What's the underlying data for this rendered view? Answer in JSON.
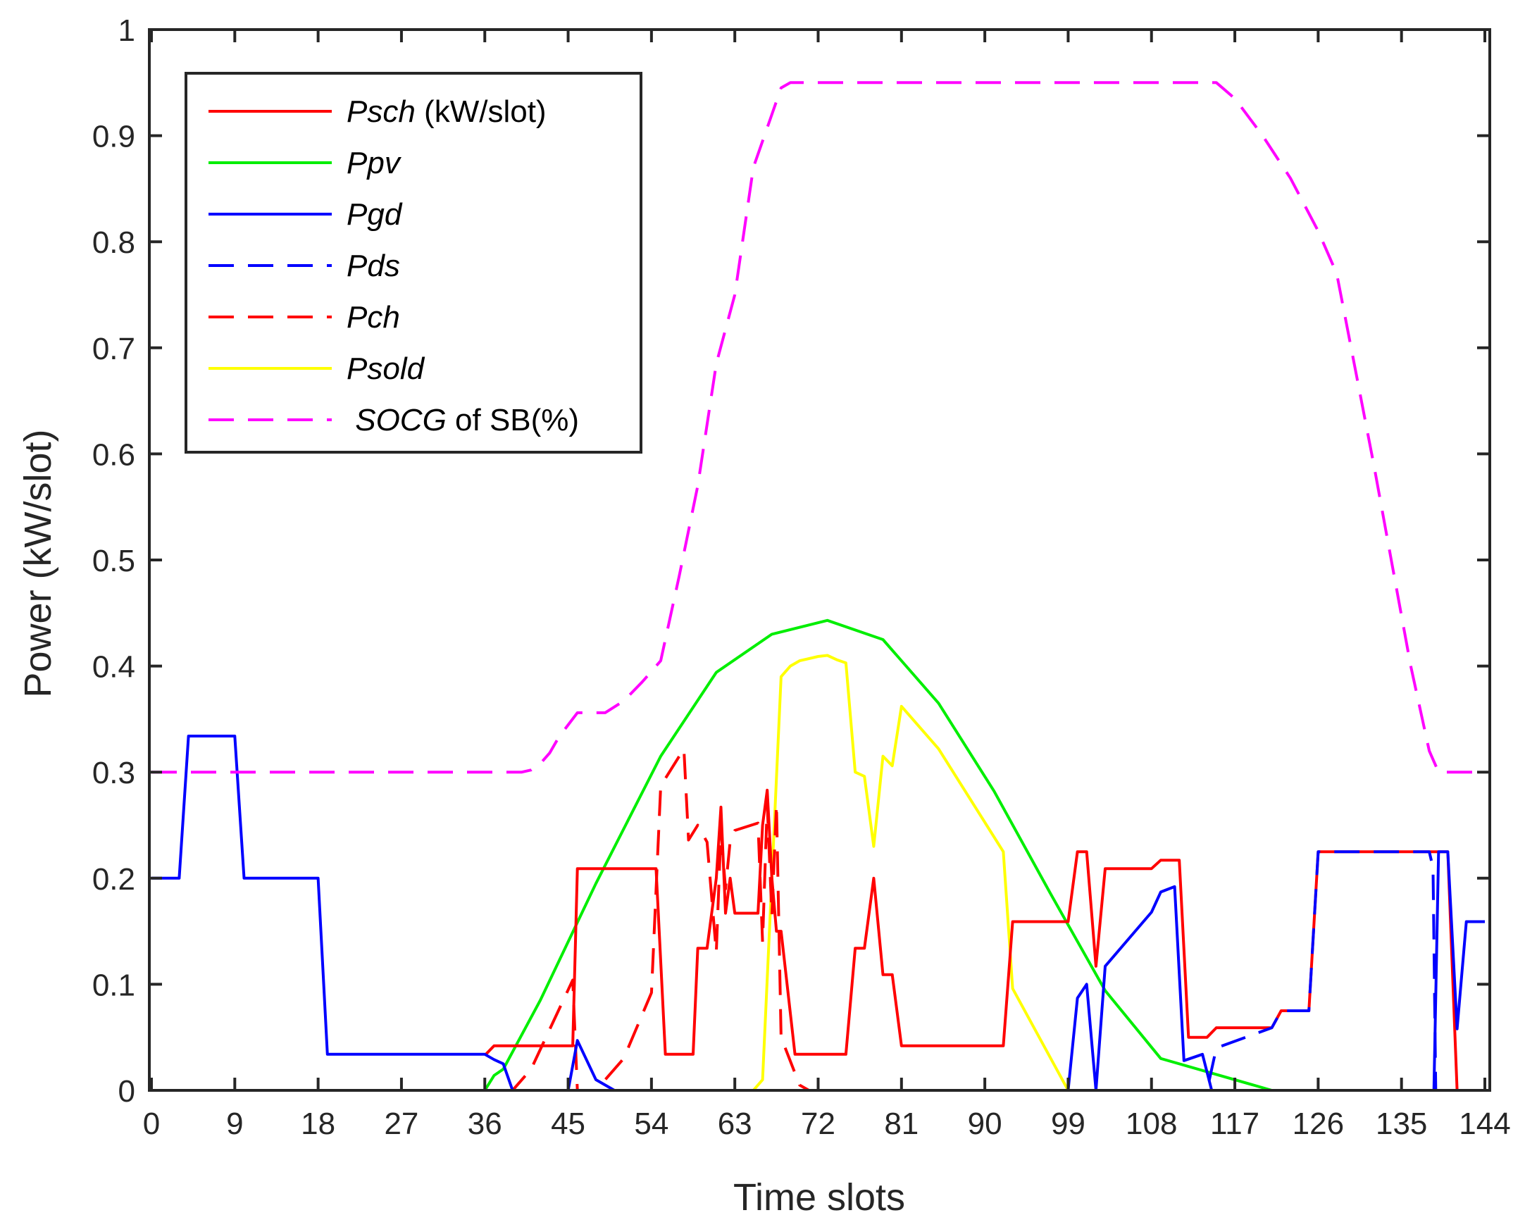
{
  "chart_data": {
    "type": "line",
    "title": "",
    "xlabel": "Time slots",
    "ylabel": "Power (kW/slot)",
    "xlim": [
      0,
      145
    ],
    "ylim": [
      0,
      1
    ],
    "grid": false,
    "legend_position": "top-left",
    "x_ticks": [
      0,
      9,
      18,
      27,
      36,
      45,
      54,
      63,
      72,
      81,
      90,
      99,
      108,
      117,
      126,
      135,
      144
    ],
    "y_ticks": [
      0,
      0.1,
      0.2,
      0.3,
      0.4,
      0.5,
      0.6,
      0.7,
      0.8,
      0.9,
      1
    ],
    "y_tick_labels": [
      "0",
      "0.1",
      "0.2",
      "0.3",
      "0.4",
      "0.5",
      "0.6",
      "0.7",
      "0.8",
      "0.9",
      "1"
    ],
    "series": [
      {
        "name": "Psch",
        "name_suffix": " (kW/slot)",
        "color": "#ff0000",
        "dash": "solid",
        "x": [
          36,
          37,
          45.5,
          46,
          54.5,
          55.5,
          58.5,
          59,
          60,
          61,
          61.5,
          62,
          62.5,
          63,
          65.5,
          66,
          66.5,
          67,
          67.5,
          68,
          69.5,
          75,
          76,
          77,
          78,
          79,
          80,
          81,
          92,
          93,
          99,
          100,
          101,
          102,
          103,
          108,
          109,
          111,
          112,
          114,
          115,
          121,
          122,
          125,
          126,
          140,
          141,
          144
        ],
        "y": [
          0.033,
          0.042,
          0.042,
          0.209,
          0.209,
          0.034,
          0.034,
          0.134,
          0.134,
          0.2,
          0.267,
          0.167,
          0.2,
          0.167,
          0.167,
          0.25,
          0.283,
          0.2,
          0.15,
          0.15,
          0.034,
          0.034,
          0.134,
          0.134,
          0.2,
          0.109,
          0.109,
          0.042,
          0.042,
          0.159,
          0.159,
          0.225,
          0.225,
          0.117,
          0.209,
          0.209,
          0.217,
          0.217,
          0.05,
          0.05,
          0.059,
          0.059,
          0.075,
          0.075,
          0.225,
          0.225,
          0.0,
          0.0
        ]
      },
      {
        "name": "Ppv",
        "name_suffix": "",
        "color": "#00ee00",
        "dash": "solid",
        "x": [
          0,
          36,
          37,
          38,
          42,
          48,
          55,
          61,
          67,
          73,
          79,
          85,
          91,
          97,
          103,
          109,
          115,
          121,
          144
        ],
        "y": [
          0.0,
          0.0,
          0.014,
          0.02,
          0.085,
          0.195,
          0.315,
          0.394,
          0.43,
          0.443,
          0.425,
          0.365,
          0.282,
          0.187,
          0.094,
          0.03,
          0.015,
          0.0,
          0.0
        ]
      },
      {
        "name": "Pgd",
        "name_suffix": "",
        "color": "#0000ff",
        "dash": "solid",
        "x": [
          0,
          3,
          4,
          9,
          10,
          18,
          19,
          36,
          37,
          38,
          39,
          40,
          45,
          46,
          48,
          50,
          99,
          100,
          101,
          102,
          103,
          108,
          109,
          110.5,
          111.5,
          113.5,
          114.5,
          138,
          138.5,
          139,
          140,
          141,
          142,
          143,
          144
        ],
        "y": [
          0.2,
          0.2,
          0.334,
          0.334,
          0.2,
          0.2,
          0.034,
          0.034,
          0.029,
          0.025,
          0.0,
          0.0,
          0.0,
          0.047,
          0.01,
          0.0,
          0.0,
          0.087,
          0.1,
          0.0,
          0.117,
          0.168,
          0.187,
          0.192,
          0.028,
          0.034,
          0.0,
          0.0,
          0.0,
          0.225,
          0.225,
          0.058,
          0.159,
          0.159,
          0.159
        ]
      },
      {
        "name": "Pds",
        "name_suffix": "",
        "color": "#0000ff",
        "dash": "dashed",
        "x": [
          0,
          114,
          115,
          121,
          122,
          125,
          126,
          138,
          138.4,
          138.7,
          139,
          144
        ],
        "y": [
          0.0,
          0.0,
          0.04,
          0.059,
          0.075,
          0.075,
          0.225,
          0.225,
          0.21,
          0.0,
          0.0,
          0.0
        ]
      },
      {
        "name": "Pch",
        "name_suffix": "",
        "color": "#ff0000",
        "dash": "dashed",
        "x": [
          0,
          39,
          41,
          45.5,
          46,
          48,
          51,
          54,
          55,
          57.5,
          58,
          59,
          60,
          61,
          61.5,
          62,
          62.5,
          63,
          65.5,
          66,
          66.5,
          67,
          67.5,
          68,
          70,
          71,
          144
        ],
        "y": [
          0.0,
          0.0,
          0.02,
          0.104,
          0.0,
          0.0,
          0.03,
          0.092,
          0.287,
          0.322,
          0.236,
          0.25,
          0.234,
          0.13,
          0.245,
          0.19,
          0.235,
          0.245,
          0.252,
          0.14,
          0.27,
          0.165,
          0.27,
          0.05,
          0.005,
          0.0,
          0.0
        ]
      },
      {
        "name": "Psold",
        "name_suffix": "",
        "color": "#ffff00",
        "dash": "solid",
        "x": [
          0,
          65,
          66,
          67,
          68,
          69,
          70,
          72,
          73,
          74,
          75,
          76,
          77,
          78,
          79,
          80,
          81,
          85,
          92,
          93,
          99,
          100,
          144
        ],
        "y": [
          0.0,
          0.0,
          0.01,
          0.2,
          0.39,
          0.4,
          0.405,
          0.409,
          0.41,
          0.406,
          0.403,
          0.3,
          0.296,
          0.23,
          0.315,
          0.306,
          0.362,
          0.322,
          0.225,
          0.096,
          0.0,
          0.0,
          0.0
        ]
      },
      {
        "name": "SOCG",
        "name_prefix": " ",
        "name_suffix": " of SB(%)",
        "color": "#ff00ff",
        "dash": "dashed",
        "x": [
          0,
          40,
          41,
          42,
          43,
          44,
          46,
          49,
          51,
          53,
          55,
          57,
          59,
          61,
          63,
          65,
          67,
          68,
          69,
          70,
          115,
          117,
          120,
          123,
          126,
          128,
          130,
          132,
          134,
          136,
          138,
          139,
          140,
          144
        ],
        "y": [
          0.3,
          0.3,
          0.302,
          0.308,
          0.318,
          0.333,
          0.356,
          0.356,
          0.367,
          0.385,
          0.405,
          0.485,
          0.57,
          0.685,
          0.75,
          0.87,
          0.92,
          0.945,
          0.95,
          0.95,
          0.95,
          0.935,
          0.9,
          0.86,
          0.81,
          0.77,
          0.68,
          0.59,
          0.495,
          0.4,
          0.32,
          0.3,
          0.3,
          0.3
        ]
      }
    ]
  }
}
